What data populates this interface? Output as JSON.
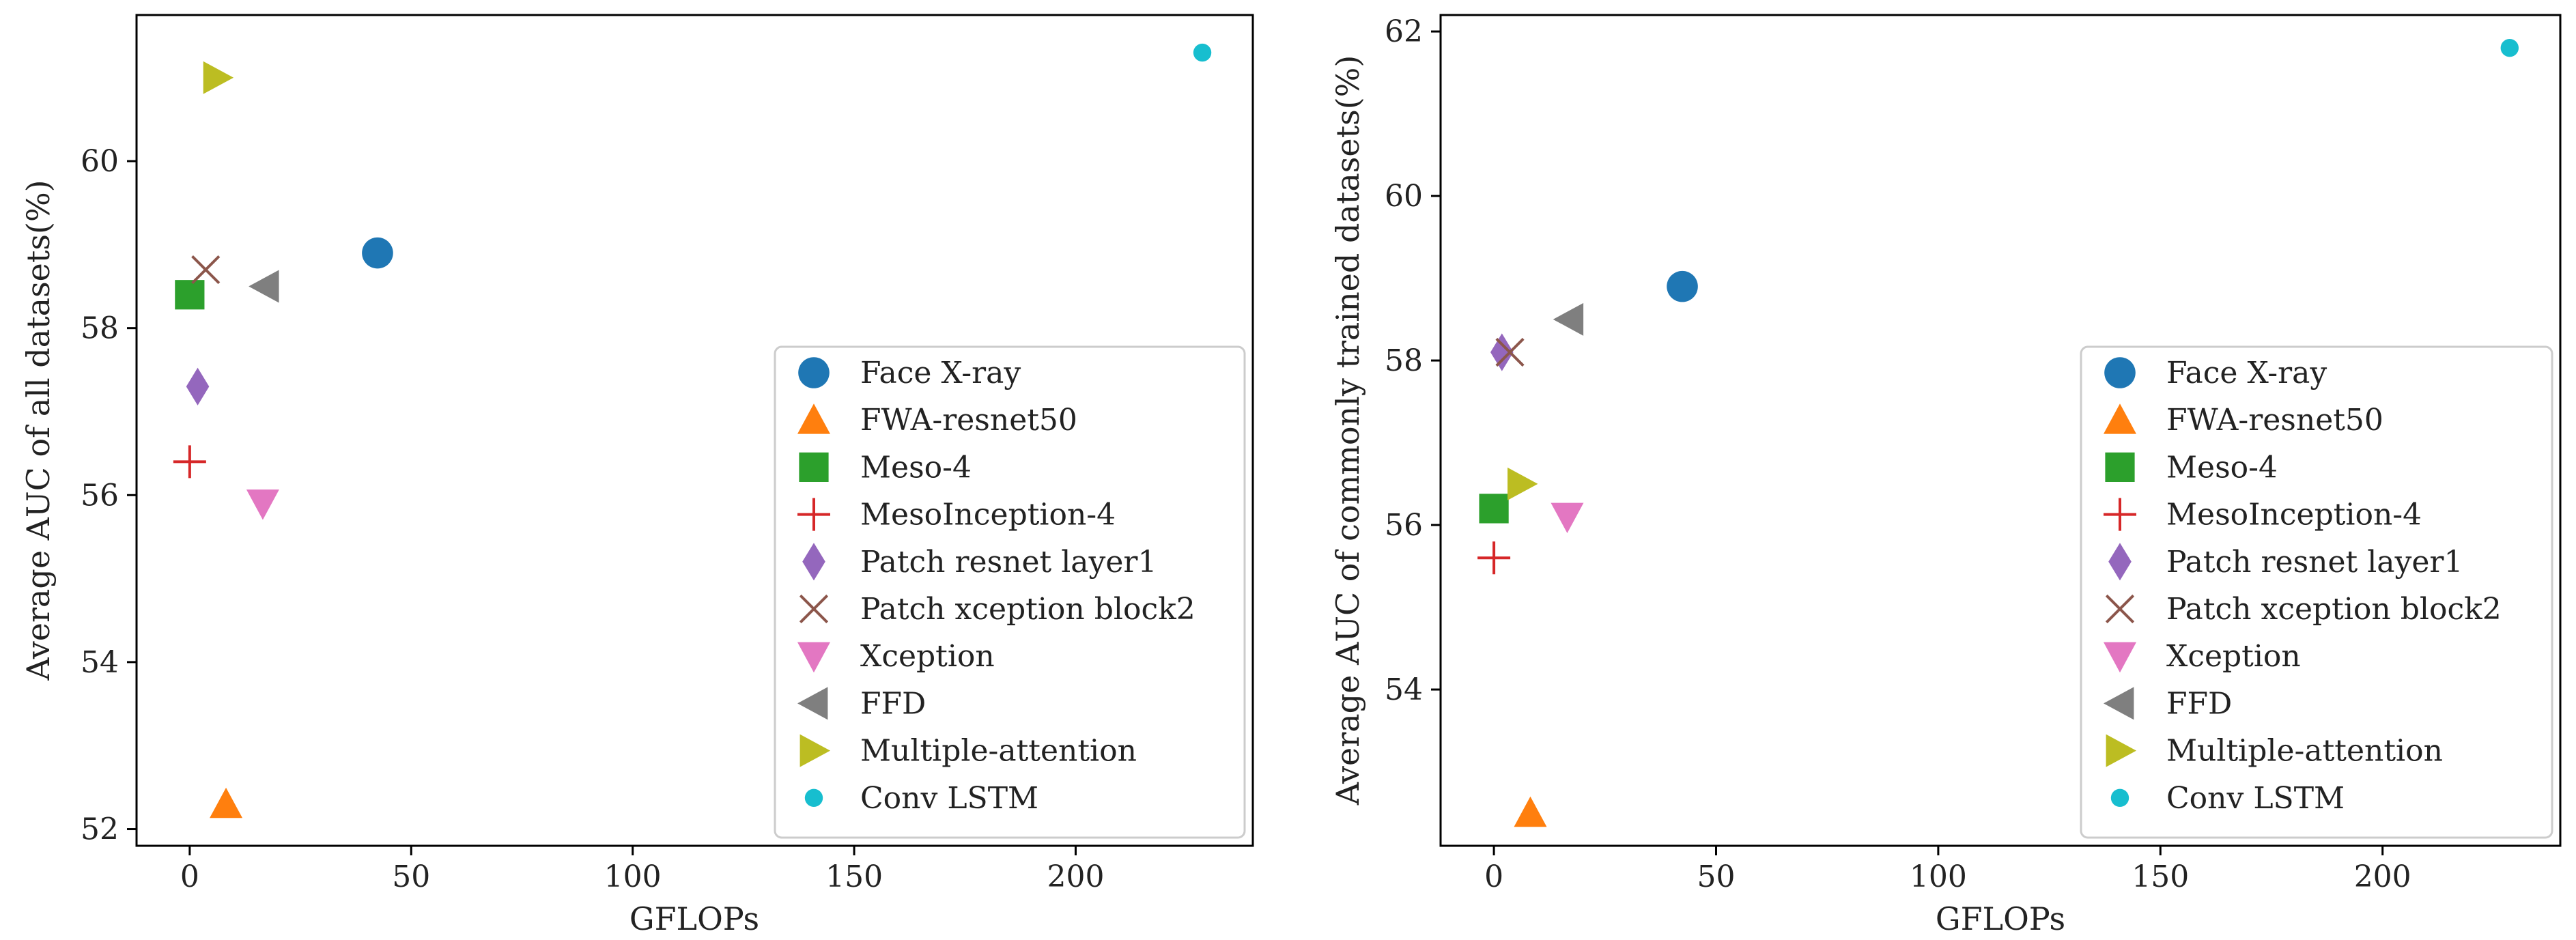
{
  "colors": {
    "Face X-ray": "#1f77b4",
    "FWA-resnet50": "#ff7f0e",
    "Meso-4": "#2ca02c",
    "MesoInception-4": "#d62728",
    "Patch resnet layer1": "#9467bd",
    "Patch xception block2": "#8c564b",
    "Xception": "#e377c2",
    "FFD": "#7f7f7f",
    "Multiple-attention": "#bcbd22",
    "Conv LSTM": "#17becf"
  },
  "markers": {
    "Face X-ray": "circle",
    "FWA-resnet50": "triangle-up",
    "Meso-4": "square",
    "MesoInception-4": "plus",
    "Patch resnet layer1": "diamond",
    "Patch xception block2": "x",
    "Xception": "triangle-down",
    "FFD": "triangle-left",
    "Multiple-attention": "triangle-right",
    "Conv LSTM": "small-circle"
  },
  "chart_data": [
    {
      "type": "scatter",
      "xlabel": "GFLOPs",
      "ylabel": "Average AUC of all datasets(%)",
      "xlim": [
        -12,
        240
      ],
      "ylim": [
        51.8,
        61.75
      ],
      "xticks": [
        0,
        50,
        100,
        150,
        200
      ],
      "yticks": [
        52,
        54,
        56,
        58,
        60
      ],
      "legend_position": "lower right",
      "series": [
        {
          "name": "Face X-ray",
          "x": [
            42.4
          ],
          "y": [
            58.9
          ]
        },
        {
          "name": "FWA-resnet50",
          "x": [
            8.2
          ],
          "y": [
            52.3
          ]
        },
        {
          "name": "Meso-4",
          "x": [
            0.0
          ],
          "y": [
            58.4
          ]
        },
        {
          "name": "MesoInception-4",
          "x": [
            0.0
          ],
          "y": [
            56.4
          ]
        },
        {
          "name": "Patch resnet layer1",
          "x": [
            1.8
          ],
          "y": [
            57.3
          ]
        },
        {
          "name": "Patch xception block2",
          "x": [
            3.6
          ],
          "y": [
            58.7
          ]
        },
        {
          "name": "Xception",
          "x": [
            16.5
          ],
          "y": [
            55.9
          ]
        },
        {
          "name": "FFD",
          "x": [
            17.0
          ],
          "y": [
            58.5
          ]
        },
        {
          "name": "Multiple-attention",
          "x": [
            6.2
          ],
          "y": [
            61.0
          ]
        },
        {
          "name": "Conv LSTM",
          "x": [
            228.6
          ],
          "y": [
            61.3
          ]
        }
      ]
    },
    {
      "type": "scatter",
      "xlabel": "GFLOPs",
      "ylabel": "Average AUC of commonly trained datasets(%)",
      "xlim": [
        -12,
        240
      ],
      "ylim": [
        52.1,
        62.2
      ],
      "xticks": [
        0,
        50,
        100,
        150,
        200
      ],
      "yticks": [
        54,
        56,
        58,
        60,
        62
      ],
      "legend_position": "lower right",
      "series": [
        {
          "name": "Face X-ray",
          "x": [
            42.4
          ],
          "y": [
            58.9
          ]
        },
        {
          "name": "FWA-resnet50",
          "x": [
            8.2
          ],
          "y": [
            52.5
          ]
        },
        {
          "name": "Meso-4",
          "x": [
            0.0
          ],
          "y": [
            56.2
          ]
        },
        {
          "name": "MesoInception-4",
          "x": [
            0.0
          ],
          "y": [
            55.6
          ]
        },
        {
          "name": "Patch resnet layer1",
          "x": [
            1.8
          ],
          "y": [
            58.1
          ]
        },
        {
          "name": "Patch xception block2",
          "x": [
            3.6
          ],
          "y": [
            58.1
          ]
        },
        {
          "name": "Xception",
          "x": [
            16.5
          ],
          "y": [
            56.1
          ]
        },
        {
          "name": "FFD",
          "x": [
            17.0
          ],
          "y": [
            58.5
          ]
        },
        {
          "name": "Multiple-attention",
          "x": [
            6.2
          ],
          "y": [
            56.5
          ]
        },
        {
          "name": "Conv LSTM",
          "x": [
            228.6
          ],
          "y": [
            61.8
          ]
        }
      ]
    }
  ]
}
